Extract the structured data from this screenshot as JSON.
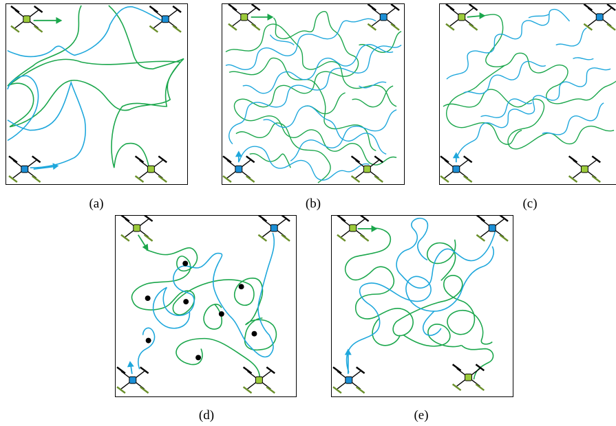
{
  "panels": [
    {
      "id": "a",
      "caption": "(a)"
    },
    {
      "id": "b",
      "caption": "(b)"
    },
    {
      "id": "c",
      "caption": "(c)"
    },
    {
      "id": "d",
      "caption": "(d)"
    },
    {
      "id": "e",
      "caption": "(e)"
    }
  ],
  "colors": {
    "green": "#1aa64b",
    "blue": "#1ea7dc",
    "drone_green": "#9ccb3b",
    "drone_blue": "#1b8fd6",
    "target": "#000000"
  },
  "icons": [
    "drone-icon",
    "heading-arrow-icon",
    "target-dot-icon"
  ]
}
